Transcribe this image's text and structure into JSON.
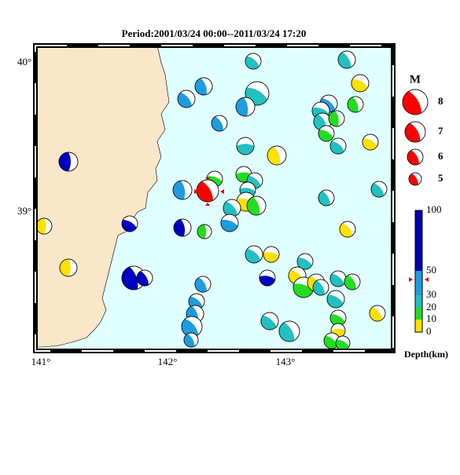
{
  "map": {
    "title": "Period:2001/03/24 00:00--2011/03/24 17:20",
    "lat_labels": [
      "40°",
      "39°"
    ],
    "lon_labels": [
      "141°",
      "142°",
      "143°"
    ]
  },
  "legend": {
    "magnitude_title": "M",
    "magnitudes": [
      "8",
      "7",
      "6",
      "5"
    ],
    "depth_labels": [
      "100",
      "50",
      "30",
      "20",
      "10",
      "0"
    ],
    "depth_title": "Depth(km)"
  }
}
